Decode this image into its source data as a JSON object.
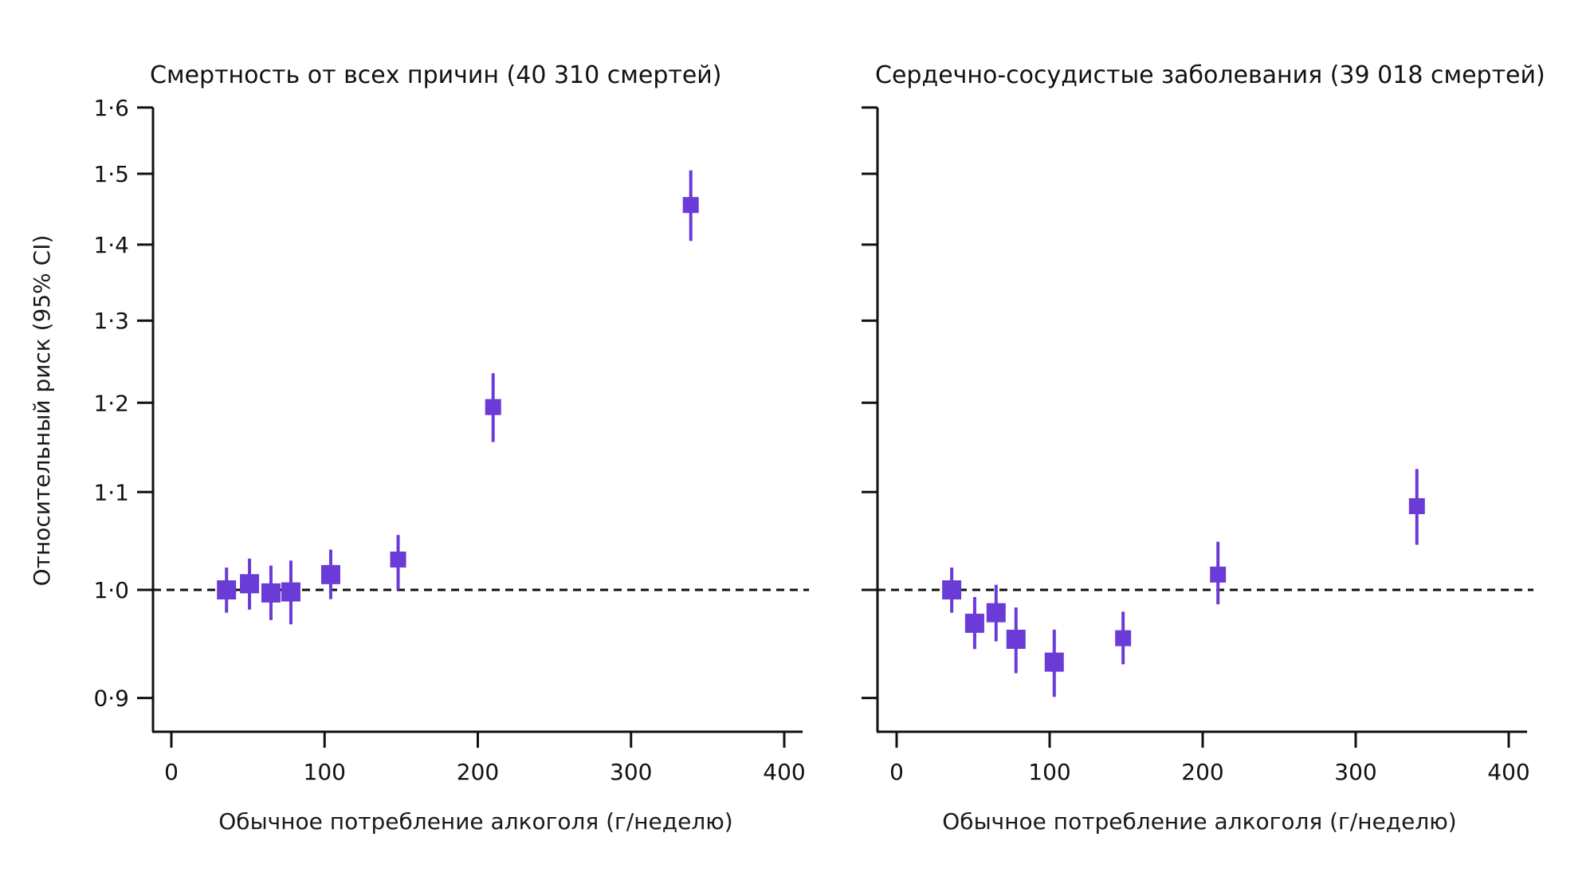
{
  "colors": {
    "marker": "#6a3bd6",
    "axis": "#111111",
    "reference": "#111111",
    "background": "#ffffff"
  },
  "chart_data": [
    {
      "type": "scatter",
      "title": "Смертность от всех причин (40 310 смертей)",
      "xlabel": "Обычное потребление алкоголя (г/неделю)",
      "ylabel": "Относительный риск (95% CI)",
      "xlim": [
        -12,
        412
      ],
      "ylim": [
        0.875,
        1.6
      ],
      "y_scale": "log",
      "xticks": [
        0,
        100,
        200,
        300,
        400
      ],
      "xtick_labels": [
        "0",
        "100",
        "200",
        "300",
        "400"
      ],
      "yticks": [
        0.9,
        1.0,
        1.1,
        1.2,
        1.3,
        1.4,
        1.5,
        1.6
      ],
      "ytick_labels": [
        "0·9",
        "1·0",
        "1·1",
        "1·2",
        "1·3",
        "1·4",
        "1·5",
        "1·6"
      ],
      "reference_line": 1.0,
      "points": [
        {
          "x": 36,
          "y": 1.0,
          "lo": 0.978,
          "hi": 1.022
        },
        {
          "x": 51,
          "y": 1.006,
          "lo": 0.981,
          "hi": 1.031
        },
        {
          "x": 65,
          "y": 0.997,
          "lo": 0.971,
          "hi": 1.024
        },
        {
          "x": 78,
          "y": 0.998,
          "lo": 0.967,
          "hi": 1.029
        },
        {
          "x": 104,
          "y": 1.015,
          "lo": 0.991,
          "hi": 1.04
        },
        {
          "x": 148,
          "y": 1.03,
          "lo": 1.0,
          "hi": 1.055
        },
        {
          "x": 210,
          "y": 1.195,
          "lo": 1.155,
          "hi": 1.235
        },
        {
          "x": 339,
          "y": 1.455,
          "lo": 1.405,
          "hi": 1.505
        }
      ]
    },
    {
      "type": "scatter",
      "title": "Сердечно-сосудистые заболевания  (39 018 смертей)",
      "xlabel": "Обычное потребление алкоголя (г/неделю)",
      "ylabel": "",
      "xlim": [
        -12,
        412
      ],
      "ylim": [
        0.875,
        1.6
      ],
      "y_scale": "log",
      "xticks": [
        0,
        100,
        200,
        300,
        400
      ],
      "xtick_labels": [
        "0",
        "100",
        "200",
        "300",
        "400"
      ],
      "yticks": [
        0.9,
        1.0,
        1.1,
        1.2,
        1.3,
        1.4,
        1.5,
        1.6
      ],
      "ytick_labels": [],
      "reference_line": 1.0,
      "points": [
        {
          "x": 36,
          "y": 1.0,
          "lo": 0.978,
          "hi": 1.022
        },
        {
          "x": 51,
          "y": 0.968,
          "lo": 0.944,
          "hi": 0.993
        },
        {
          "x": 65,
          "y": 0.978,
          "lo": 0.951,
          "hi": 1.005
        },
        {
          "x": 78,
          "y": 0.953,
          "lo": 0.922,
          "hi": 0.983
        },
        {
          "x": 103,
          "y": 0.932,
          "lo": 0.901,
          "hi": 0.962
        },
        {
          "x": 148,
          "y": 0.954,
          "lo": 0.93,
          "hi": 0.979
        },
        {
          "x": 210,
          "y": 1.015,
          "lo": 0.986,
          "hi": 1.048
        },
        {
          "x": 340,
          "y": 1.085,
          "lo": 1.045,
          "hi": 1.125
        }
      ]
    }
  ]
}
